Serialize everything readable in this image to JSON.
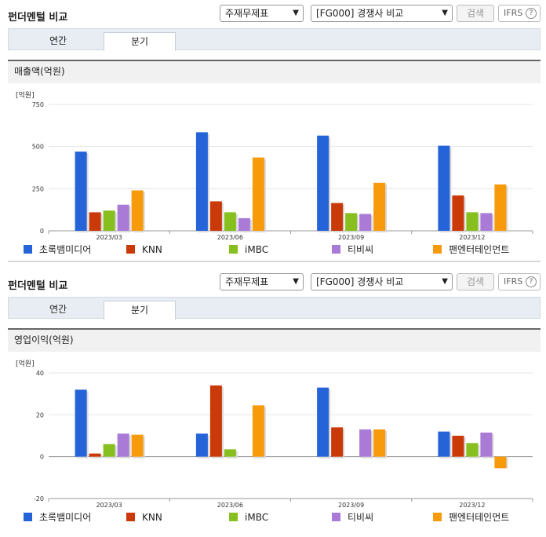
{
  "colors": [
    "#2563d8",
    "#c93a08",
    "#86bf1e",
    "#a97ad6",
    "#f79a0c"
  ],
  "sections": [
    {
      "title": "펀더멘털 비교",
      "select1": "주재무제표",
      "select2": "[FG000] 경쟁사 비교",
      "search": "검색",
      "ifrs": "IFRS",
      "ifrs_help": "?",
      "tabs": [
        "연간",
        "분기"
      ],
      "metric": "매출액(억원)",
      "unit": "[억원]",
      "chart_data": {
        "type": "bar",
        "categories": [
          "2023/03",
          "2023/06",
          "2023/09",
          "2023/12"
        ],
        "ylim": [
          0,
          750
        ],
        "yticks": [
          0,
          250,
          500,
          750
        ],
        "ytick_labels": [
          "0",
          "250",
          "500",
          "750"
        ],
        "legend": "bottom",
        "series": [
          {
            "name": "초록뱀미디어",
            "values": [
              470,
              585,
              565,
              505
            ]
          },
          {
            "name": "KNN",
            "values": [
              110,
              175,
              165,
              210
            ]
          },
          {
            "name": "iMBC",
            "values": [
              120,
              110,
              105,
              110
            ]
          },
          {
            "name": "티비씨",
            "values": [
              155,
              75,
              100,
              105
            ]
          },
          {
            "name": "팬엔터테인먼트",
            "values": [
              240,
              435,
              285,
              275
            ]
          }
        ]
      }
    },
    {
      "title": "펀더멘털 비교",
      "select1": "주재무제표",
      "select2": "[FG000] 경쟁사 비교",
      "search": "검색",
      "ifrs": "IFRS",
      "ifrs_help": "?",
      "tabs": [
        "연간",
        "분기"
      ],
      "metric": "영업이익(억원)",
      "unit": "[억원]",
      "chart_data": {
        "type": "bar",
        "categories": [
          "2023/03",
          "2023/06",
          "2023/09",
          "2023/12"
        ],
        "ylim": [
          -20,
          40
        ],
        "yticks": [
          -20,
          0,
          20,
          40
        ],
        "ytick_labels": [
          "-20",
          "0",
          "20",
          "40"
        ],
        "legend": "bottom",
        "series": [
          {
            "name": "초록뱀미디어",
            "values": [
              32,
              11,
              33,
              12
            ]
          },
          {
            "name": "KNN",
            "values": [
              1.5,
              34,
              14,
              10
            ]
          },
          {
            "name": "iMBC",
            "values": [
              6,
              3.5,
              0,
              6.5
            ]
          },
          {
            "name": "티비씨",
            "values": [
              11,
              0,
              13,
              11.5
            ]
          },
          {
            "name": "팬엔터테인먼트",
            "values": [
              10.5,
              24.5,
              13,
              -5.5
            ]
          }
        ]
      }
    }
  ]
}
